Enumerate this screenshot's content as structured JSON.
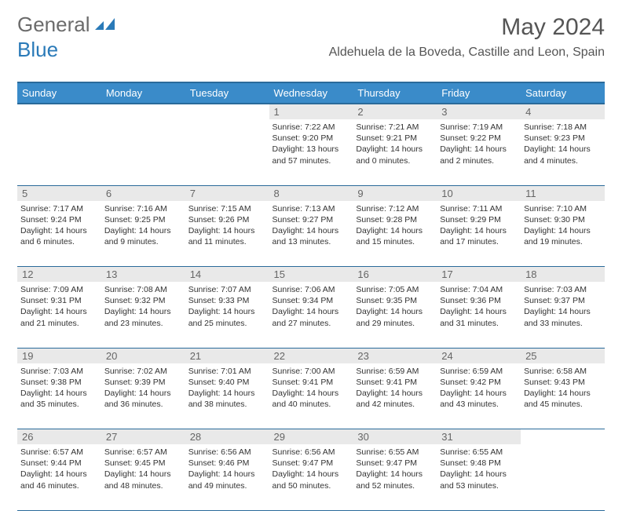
{
  "brand": {
    "part1": "General",
    "part2": "Blue"
  },
  "title": "May 2024",
  "location": "Aldehuela de la Boveda, Castille and Leon, Spain",
  "weekdays": [
    "Sunday",
    "Monday",
    "Tuesday",
    "Wednesday",
    "Thursday",
    "Friday",
    "Saturday"
  ],
  "colors": {
    "header_bg": "#3a8bc9",
    "header_text": "#ffffff",
    "rule": "#2a6a9a",
    "daynum_bg": "#e9e9e9",
    "body_text": "#333333",
    "logo_gray": "#6b6b6b",
    "logo_blue": "#2a7ab8"
  },
  "weeks": [
    {
      "nums": [
        "",
        "",
        "",
        "1",
        "2",
        "3",
        "4"
      ],
      "cells": [
        null,
        null,
        null,
        {
          "sr": "Sunrise: 7:22 AM",
          "ss": "Sunset: 9:20 PM",
          "dl": "Daylight: 13 hours and 57 minutes."
        },
        {
          "sr": "Sunrise: 7:21 AM",
          "ss": "Sunset: 9:21 PM",
          "dl": "Daylight: 14 hours and 0 minutes."
        },
        {
          "sr": "Sunrise: 7:19 AM",
          "ss": "Sunset: 9:22 PM",
          "dl": "Daylight: 14 hours and 2 minutes."
        },
        {
          "sr": "Sunrise: 7:18 AM",
          "ss": "Sunset: 9:23 PM",
          "dl": "Daylight: 14 hours and 4 minutes."
        }
      ]
    },
    {
      "nums": [
        "5",
        "6",
        "7",
        "8",
        "9",
        "10",
        "11"
      ],
      "cells": [
        {
          "sr": "Sunrise: 7:17 AM",
          "ss": "Sunset: 9:24 PM",
          "dl": "Daylight: 14 hours and 6 minutes."
        },
        {
          "sr": "Sunrise: 7:16 AM",
          "ss": "Sunset: 9:25 PM",
          "dl": "Daylight: 14 hours and 9 minutes."
        },
        {
          "sr": "Sunrise: 7:15 AM",
          "ss": "Sunset: 9:26 PM",
          "dl": "Daylight: 14 hours and 11 minutes."
        },
        {
          "sr": "Sunrise: 7:13 AM",
          "ss": "Sunset: 9:27 PM",
          "dl": "Daylight: 14 hours and 13 minutes."
        },
        {
          "sr": "Sunrise: 7:12 AM",
          "ss": "Sunset: 9:28 PM",
          "dl": "Daylight: 14 hours and 15 minutes."
        },
        {
          "sr": "Sunrise: 7:11 AM",
          "ss": "Sunset: 9:29 PM",
          "dl": "Daylight: 14 hours and 17 minutes."
        },
        {
          "sr": "Sunrise: 7:10 AM",
          "ss": "Sunset: 9:30 PM",
          "dl": "Daylight: 14 hours and 19 minutes."
        }
      ]
    },
    {
      "nums": [
        "12",
        "13",
        "14",
        "15",
        "16",
        "17",
        "18"
      ],
      "cells": [
        {
          "sr": "Sunrise: 7:09 AM",
          "ss": "Sunset: 9:31 PM",
          "dl": "Daylight: 14 hours and 21 minutes."
        },
        {
          "sr": "Sunrise: 7:08 AM",
          "ss": "Sunset: 9:32 PM",
          "dl": "Daylight: 14 hours and 23 minutes."
        },
        {
          "sr": "Sunrise: 7:07 AM",
          "ss": "Sunset: 9:33 PM",
          "dl": "Daylight: 14 hours and 25 minutes."
        },
        {
          "sr": "Sunrise: 7:06 AM",
          "ss": "Sunset: 9:34 PM",
          "dl": "Daylight: 14 hours and 27 minutes."
        },
        {
          "sr": "Sunrise: 7:05 AM",
          "ss": "Sunset: 9:35 PM",
          "dl": "Daylight: 14 hours and 29 minutes."
        },
        {
          "sr": "Sunrise: 7:04 AM",
          "ss": "Sunset: 9:36 PM",
          "dl": "Daylight: 14 hours and 31 minutes."
        },
        {
          "sr": "Sunrise: 7:03 AM",
          "ss": "Sunset: 9:37 PM",
          "dl": "Daylight: 14 hours and 33 minutes."
        }
      ]
    },
    {
      "nums": [
        "19",
        "20",
        "21",
        "22",
        "23",
        "24",
        "25"
      ],
      "cells": [
        {
          "sr": "Sunrise: 7:03 AM",
          "ss": "Sunset: 9:38 PM",
          "dl": "Daylight: 14 hours and 35 minutes."
        },
        {
          "sr": "Sunrise: 7:02 AM",
          "ss": "Sunset: 9:39 PM",
          "dl": "Daylight: 14 hours and 36 minutes."
        },
        {
          "sr": "Sunrise: 7:01 AM",
          "ss": "Sunset: 9:40 PM",
          "dl": "Daylight: 14 hours and 38 minutes."
        },
        {
          "sr": "Sunrise: 7:00 AM",
          "ss": "Sunset: 9:41 PM",
          "dl": "Daylight: 14 hours and 40 minutes."
        },
        {
          "sr": "Sunrise: 6:59 AM",
          "ss": "Sunset: 9:41 PM",
          "dl": "Daylight: 14 hours and 42 minutes."
        },
        {
          "sr": "Sunrise: 6:59 AM",
          "ss": "Sunset: 9:42 PM",
          "dl": "Daylight: 14 hours and 43 minutes."
        },
        {
          "sr": "Sunrise: 6:58 AM",
          "ss": "Sunset: 9:43 PM",
          "dl": "Daylight: 14 hours and 45 minutes."
        }
      ]
    },
    {
      "nums": [
        "26",
        "27",
        "28",
        "29",
        "30",
        "31",
        ""
      ],
      "cells": [
        {
          "sr": "Sunrise: 6:57 AM",
          "ss": "Sunset: 9:44 PM",
          "dl": "Daylight: 14 hours and 46 minutes."
        },
        {
          "sr": "Sunrise: 6:57 AM",
          "ss": "Sunset: 9:45 PM",
          "dl": "Daylight: 14 hours and 48 minutes."
        },
        {
          "sr": "Sunrise: 6:56 AM",
          "ss": "Sunset: 9:46 PM",
          "dl": "Daylight: 14 hours and 49 minutes."
        },
        {
          "sr": "Sunrise: 6:56 AM",
          "ss": "Sunset: 9:47 PM",
          "dl": "Daylight: 14 hours and 50 minutes."
        },
        {
          "sr": "Sunrise: 6:55 AM",
          "ss": "Sunset: 9:47 PM",
          "dl": "Daylight: 14 hours and 52 minutes."
        },
        {
          "sr": "Sunrise: 6:55 AM",
          "ss": "Sunset: 9:48 PM",
          "dl": "Daylight: 14 hours and 53 minutes."
        },
        null
      ]
    }
  ]
}
